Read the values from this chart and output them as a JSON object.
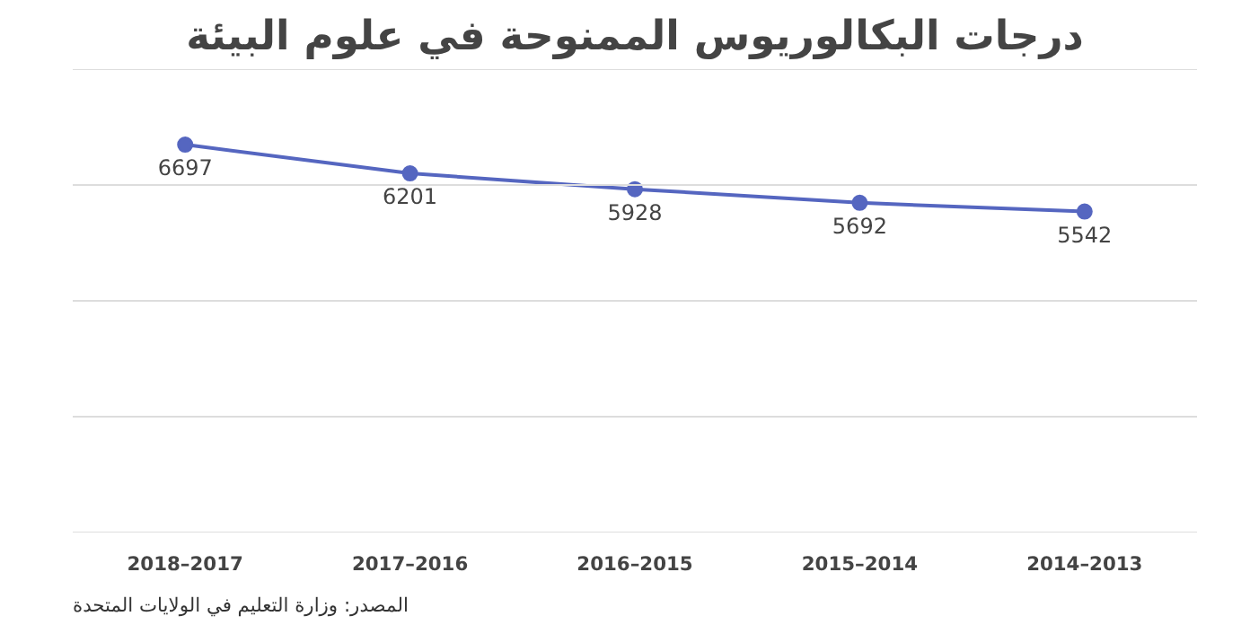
{
  "chart_data": {
    "type": "line",
    "title": "درجات البكالوريوس الممنوحة في علوم البيئة",
    "categories": [
      "2018–2017",
      "2017–2016",
      "2016–2015",
      "2015–2014",
      "2014–2013"
    ],
    "values": [
      6697,
      6201,
      5928,
      5692,
      5542
    ],
    "color": "#5566c0",
    "ylim": [
      0,
      8000
    ],
    "yticks": [
      {
        "value": 0,
        "label": null
      },
      {
        "value": 2000,
        "label": null
      },
      {
        "value": 4000,
        "label": null
      },
      {
        "value": 6000,
        "label": null
      },
      {
        "value": 8000,
        "label": null
      }
    ],
    "grid": "y",
    "marker": "circle",
    "line_style": "solid",
    "data_labels": true,
    "legend": false,
    "annotations": [
      "المصدر: وزارة التعليم في الولايات المتحدة"
    ]
  }
}
